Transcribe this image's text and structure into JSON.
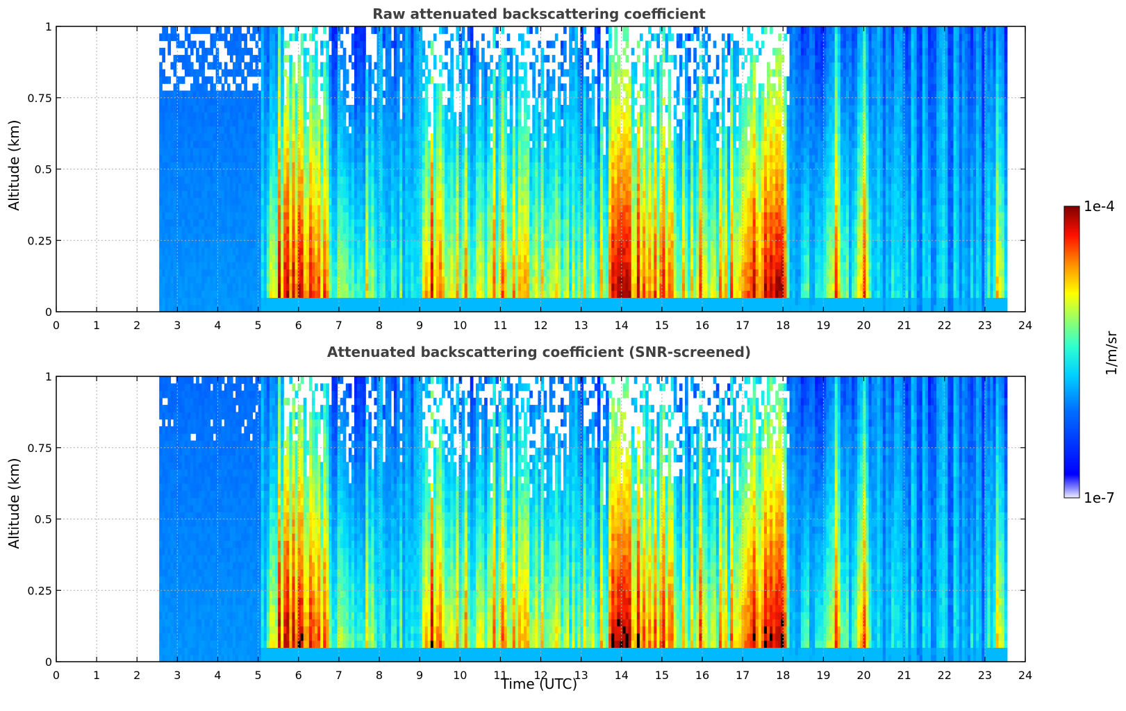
{
  "chart_data": [
    {
      "type": "heatmap",
      "title": "Raw attenuated backscattering coefficient",
      "xlabel": "",
      "ylabel": "Altitude (km)",
      "xlim": [
        0,
        24
      ],
      "ylim": [
        0,
        1
      ],
      "x_ticks": [
        "0",
        "1",
        "2",
        "3",
        "4",
        "5",
        "6",
        "7",
        "8",
        "9",
        "10",
        "11",
        "12",
        "13",
        "14",
        "15",
        "16",
        "17",
        "18",
        "19",
        "20",
        "21",
        "22",
        "23",
        "24"
      ],
      "y_ticks": [
        "0",
        "0.25",
        "0.5",
        "0.75",
        "1"
      ],
      "grid": true,
      "screened": false
    },
    {
      "type": "heatmap",
      "title": "Attenuated backscattering coefficient (SNR-screened)",
      "xlabel": "Time (UTC)",
      "ylabel": "Altitude (km)",
      "xlim": [
        0,
        24
      ],
      "ylim": [
        0,
        1
      ],
      "x_ticks": [
        "0",
        "1",
        "2",
        "3",
        "4",
        "5",
        "6",
        "7",
        "8",
        "9",
        "10",
        "11",
        "12",
        "13",
        "14",
        "15",
        "16",
        "17",
        "18",
        "19",
        "20",
        "21",
        "22",
        "23",
        "24"
      ],
      "y_ticks": [
        "0",
        "0.25",
        "0.5",
        "0.75",
        "1"
      ],
      "grid": true,
      "screened": true
    }
  ],
  "colorbar": {
    "label": "1/m/sr",
    "max_label": "1e-4",
    "min_label": "1e-7",
    "colormap": "jet",
    "scale": "log"
  },
  "data_coverage": {
    "start_hour": 2.55,
    "end_hour": 23.55
  },
  "intensity_profile": {
    "hours": [
      2.55,
      3.0,
      3.5,
      4.0,
      4.5,
      5.0,
      5.2,
      5.4,
      5.6,
      5.8,
      6.0,
      6.3,
      6.6,
      6.8,
      7.0,
      7.3,
      7.6,
      8.0,
      8.4,
      8.7,
      9.0,
      9.3,
      9.5,
      9.8,
      10.0,
      10.3,
      10.6,
      11.0,
      11.3,
      11.6,
      12.0,
      12.3,
      12.6,
      13.0,
      13.3,
      13.6,
      14.0,
      14.3,
      14.6,
      15.0,
      15.3,
      15.6,
      16.0,
      16.3,
      16.6,
      17.0,
      17.3,
      17.6,
      18.0,
      18.2,
      18.5,
      19.0,
      19.3,
      19.6,
      20.0,
      20.3,
      20.6,
      21.0,
      21.5,
      22.0,
      22.5,
      23.0,
      23.3,
      23.55
    ],
    "level": [
      0.22,
      0.22,
      0.24,
      0.24,
      0.24,
      0.26,
      0.55,
      0.7,
      0.9,
      0.88,
      0.92,
      0.95,
      0.9,
      0.55,
      0.6,
      0.5,
      0.62,
      0.52,
      0.45,
      0.48,
      0.5,
      0.9,
      0.8,
      0.55,
      0.72,
      0.62,
      0.6,
      0.8,
      0.72,
      0.68,
      0.75,
      0.62,
      0.6,
      0.55,
      0.62,
      0.68,
      0.95,
      0.92,
      0.7,
      0.9,
      0.78,
      0.65,
      0.82,
      0.72,
      0.68,
      0.82,
      0.88,
      0.95,
      0.98,
      0.45,
      0.4,
      0.42,
      0.75,
      0.45,
      0.8,
      0.42,
      0.4,
      0.38,
      0.35,
      0.32,
      0.34,
      0.36,
      0.6,
      0.4
    ]
  }
}
